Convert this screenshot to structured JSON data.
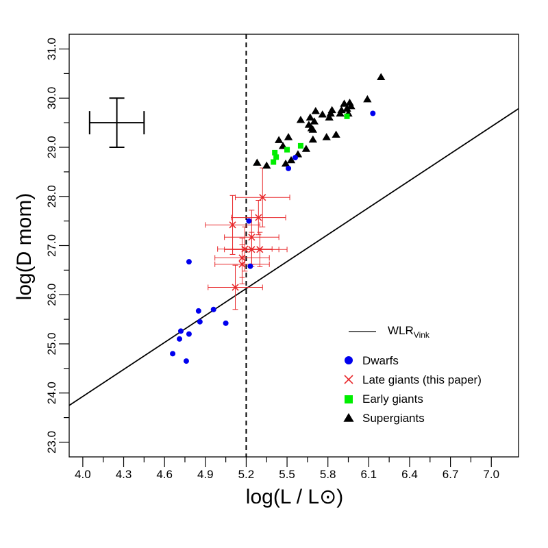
{
  "chart_data": {
    "type": "scatter",
    "xlabel": "log(L / L⊙)",
    "ylabel": "log(D mom)",
    "xlim": [
      3.9,
      7.2
    ],
    "ylim": [
      22.7,
      31.3
    ],
    "xticks": [
      4.0,
      4.3,
      4.6,
      4.9,
      5.2,
      5.5,
      5.8,
      6.1,
      6.4,
      6.7,
      7.0
    ],
    "xtick_labels": [
      "4.0",
      "4.3",
      "4.6",
      "4.9",
      "5.2",
      "5.5",
      "5.8",
      "6.1",
      "6.4",
      "6.7",
      "7.0"
    ],
    "xminor_ticks": [
      4.15,
      4.45,
      4.75,
      5.05,
      5.35,
      5.65,
      5.95,
      6.25,
      6.55,
      6.85
    ],
    "yticks": [
      23.0,
      24.0,
      25.0,
      26.0,
      27.0,
      28.0,
      29.0,
      30.0,
      31.0
    ],
    "ytick_labels": [
      "23.0",
      "24.0",
      "25.0",
      "26.0",
      "27.0",
      "28.0",
      "29.0",
      "30.0",
      "31.0"
    ],
    "yminor_ticks": [
      23.5,
      24.5,
      25.5,
      26.5,
      27.5,
      28.5,
      29.5,
      30.5
    ],
    "wlr_line": {
      "name": "WLR_Vink",
      "slope": 1.83,
      "intercept": 16.61
    },
    "vertical_line_x": 5.2,
    "typical_error": {
      "x": 4.25,
      "y": 29.5,
      "xerr": 0.2,
      "yerr": 0.5
    },
    "colors": {
      "dwarfs": "#0000ee",
      "late_giants": "#e8282b",
      "early_giants": "#00ee00",
      "supergiants": "#000000"
    },
    "series": [
      {
        "name": "Dwarfs",
        "marker": "circle",
        "points": [
          [
            4.66,
            24.8
          ],
          [
            4.71,
            25.1
          ],
          [
            4.72,
            25.26
          ],
          [
            4.76,
            24.65
          ],
          [
            4.78,
            25.2
          ],
          [
            4.85,
            25.67
          ],
          [
            4.86,
            25.45
          ],
          [
            4.96,
            25.7
          ],
          [
            5.05,
            25.42
          ],
          [
            4.78,
            26.67
          ],
          [
            5.22,
            27.5
          ],
          [
            5.23,
            26.58
          ],
          [
            5.51,
            28.57
          ],
          [
            5.56,
            28.79
          ],
          [
            6.13,
            29.69
          ]
        ]
      },
      {
        "name": "Late giants (this paper)",
        "marker": "cross",
        "points": [
          {
            "x": 5.1,
            "y": 27.42,
            "xerr": 0.2,
            "yerr": 0.6
          },
          {
            "x": 5.32,
            "y": 27.98,
            "xerr": 0.2,
            "yerr": 0.6
          },
          {
            "x": 5.29,
            "y": 27.57,
            "xerr": 0.2,
            "yerr": 0.35
          },
          {
            "x": 5.24,
            "y": 27.17,
            "xerr": 0.2,
            "yerr": 0.55
          },
          {
            "x": 5.19,
            "y": 26.93,
            "xerr": 0.2,
            "yerr": 0.45
          },
          {
            "x": 5.24,
            "y": 26.92,
            "xerr": 0.2,
            "yerr": 0.35
          },
          {
            "x": 5.3,
            "y": 26.92,
            "xerr": 0.2,
            "yerr": 0.35
          },
          {
            "x": 5.17,
            "y": 26.75,
            "xerr": 0.2,
            "yerr": 0.4
          },
          {
            "x": 5.17,
            "y": 26.62,
            "xerr": 0.2,
            "yerr": 0.4
          },
          {
            "x": 5.12,
            "y": 26.15,
            "xerr": 0.2,
            "yerr": 0.45
          }
        ]
      },
      {
        "name": "Early giants",
        "marker": "square",
        "points": [
          [
            5.4,
            28.7
          ],
          [
            5.41,
            28.89
          ],
          [
            5.42,
            28.8
          ],
          [
            5.5,
            28.95
          ],
          [
            5.6,
            29.03
          ],
          [
            5.94,
            29.63
          ]
        ]
      },
      {
        "name": "Supergiants",
        "marker": "triangle",
        "points": [
          [
            5.28,
            28.68
          ],
          [
            5.35,
            28.62
          ],
          [
            5.47,
            29.02
          ],
          [
            5.44,
            29.14
          ],
          [
            5.51,
            29.2
          ],
          [
            5.49,
            28.66
          ],
          [
            5.53,
            28.73
          ],
          [
            5.58,
            28.85
          ],
          [
            5.6,
            29.55
          ],
          [
            5.64,
            28.96
          ],
          [
            5.66,
            29.45
          ],
          [
            5.67,
            29.6
          ],
          [
            5.69,
            29.15
          ],
          [
            5.71,
            29.73
          ],
          [
            5.69,
            29.35
          ],
          [
            5.68,
            29.38
          ],
          [
            5.7,
            29.52
          ],
          [
            5.76,
            29.66
          ],
          [
            5.79,
            29.2
          ],
          [
            5.81,
            29.6
          ],
          [
            5.82,
            29.68
          ],
          [
            5.83,
            29.75
          ],
          [
            5.86,
            29.25
          ],
          [
            5.89,
            29.68
          ],
          [
            5.9,
            29.75
          ],
          [
            5.92,
            29.88
          ],
          [
            5.94,
            29.78
          ],
          [
            5.95,
            29.68
          ],
          [
            5.96,
            29.9
          ],
          [
            5.97,
            29.83
          ],
          [
            6.09,
            29.97
          ],
          [
            6.19,
            30.42
          ]
        ]
      }
    ],
    "legend": {
      "position": "bottom-right",
      "line_label_main": "WLR",
      "line_label_sub": "Vink",
      "entries": [
        "Dwarfs",
        "Late giants (this paper)",
        "Early giants",
        "Supergiants"
      ]
    }
  }
}
